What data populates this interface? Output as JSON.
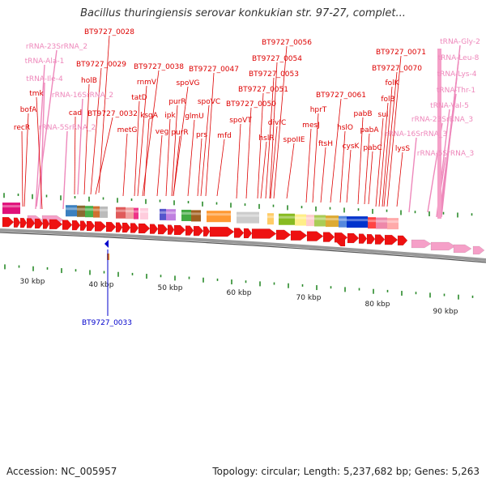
{
  "title": "Bacillus thuringiensis serovar konkukian str. 97-27, complet...",
  "footer": {
    "accession": "Accession: NC_005957",
    "summary": "Topology: circular; Length: 5,237,682 bp; Genes: 5,263"
  },
  "colors": {
    "gene": "#ee1111",
    "rna": "#f5a0c8",
    "label_gene": "#dd0000",
    "label_rna": "#ee88bb",
    "highlight": "#0000cc"
  },
  "kbp_ticks": [
    "30 kbp",
    "40 kbp",
    "50 kbp",
    "60 kbp",
    "70 kbp",
    "80 kbp",
    "90 kbp"
  ],
  "highlight_feature": "BT9727_0033",
  "labels": [
    {
      "text": "BT9727_0028",
      "type": "gene"
    },
    {
      "text": "rRNA-23SrRNA_2",
      "type": "rna"
    },
    {
      "text": "tRNA-Ala-1",
      "type": "rna"
    },
    {
      "text": "BT9727_0029",
      "type": "gene"
    },
    {
      "text": "tRNA-Ile-4",
      "type": "rna"
    },
    {
      "text": "holB",
      "type": "gene"
    },
    {
      "text": "rRNA-16SrRNA_2",
      "type": "rna"
    },
    {
      "text": "tmk",
      "type": "gene"
    },
    {
      "text": "bofA",
      "type": "gene"
    },
    {
      "text": "cad",
      "type": "gene"
    },
    {
      "text": "BT9727_0032",
      "type": "gene"
    },
    {
      "text": "recR",
      "type": "gene"
    },
    {
      "text": "rRNA-5SrRNA_2",
      "type": "rna"
    },
    {
      "text": "BT9727_0038",
      "type": "gene"
    },
    {
      "text": "rnmV",
      "type": "gene"
    },
    {
      "text": "tatD",
      "type": "gene"
    },
    {
      "text": "ksgA",
      "type": "gene"
    },
    {
      "text": "metG",
      "type": "gene"
    },
    {
      "text": "spoVG",
      "type": "gene"
    },
    {
      "text": "ipk",
      "type": "gene"
    },
    {
      "text": "purR",
      "type": "gene"
    },
    {
      "text": "veg",
      "type": "gene"
    },
    {
      "text": "purR",
      "type": "gene"
    },
    {
      "text": "glmU",
      "type": "gene"
    },
    {
      "text": "BT9727_0047",
      "type": "gene"
    },
    {
      "text": "spoVC",
      "type": "gene"
    },
    {
      "text": "prs",
      "type": "gene"
    },
    {
      "text": "mfd",
      "type": "gene"
    },
    {
      "text": "BT9727_0056",
      "type": "gene"
    },
    {
      "text": "BT9727_0054",
      "type": "gene"
    },
    {
      "text": "BT9727_0053",
      "type": "gene"
    },
    {
      "text": "BT9727_0051",
      "type": "gene"
    },
    {
      "text": "BT9727_0050",
      "type": "gene"
    },
    {
      "text": "spoVT",
      "type": "gene"
    },
    {
      "text": "divIC",
      "type": "gene"
    },
    {
      "text": "hslR",
      "type": "gene"
    },
    {
      "text": "spoIIE",
      "type": "gene"
    },
    {
      "text": "BT9727_0061",
      "type": "gene"
    },
    {
      "text": "hprT",
      "type": "gene"
    },
    {
      "text": "mesJ",
      "type": "gene"
    },
    {
      "text": "ftsH",
      "type": "gene"
    },
    {
      "text": "hslO",
      "type": "gene"
    },
    {
      "text": "cysK",
      "type": "gene"
    },
    {
      "text": "pabB",
      "type": "gene"
    },
    {
      "text": "pabA",
      "type": "gene"
    },
    {
      "text": "pabC",
      "type": "gene"
    },
    {
      "text": "BT9727_0071",
      "type": "gene"
    },
    {
      "text": "BT9727_0070",
      "type": "gene"
    },
    {
      "text": "folK",
      "type": "gene"
    },
    {
      "text": "folB",
      "type": "gene"
    },
    {
      "text": "sul",
      "type": "gene"
    },
    {
      "text": "lysS",
      "type": "gene"
    },
    {
      "text": "rRNA-16SrRNA_3",
      "type": "rna"
    },
    {
      "text": "rRNA-23SrRNA_3",
      "type": "rna"
    },
    {
      "text": "rRNA-5SrRNA_3",
      "type": "rna"
    },
    {
      "text": "tRNA-Gly-2",
      "type": "rna"
    },
    {
      "text": "tRNA-Leu-8",
      "type": "rna"
    },
    {
      "text": "tRNA-Lys-4",
      "type": "rna"
    },
    {
      "text": "tRNA-Thr-1",
      "type": "rna"
    },
    {
      "text": "tRNA-Val-5",
      "type": "rna"
    }
  ]
}
